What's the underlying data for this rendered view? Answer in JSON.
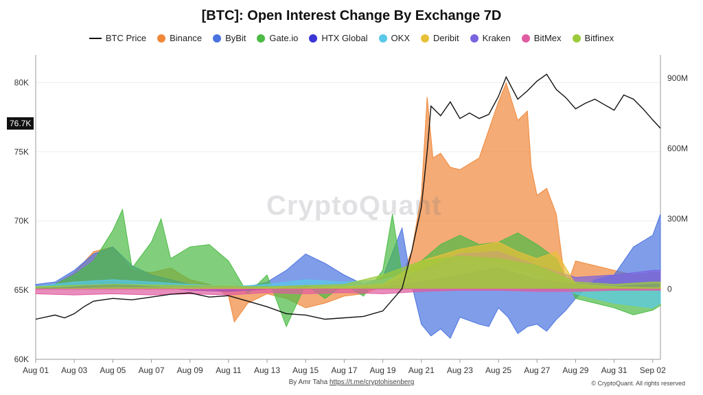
{
  "title": "[BTC]: Open Interest Change By Exchange 7D",
  "watermark": "CryptoQuant",
  "price_badge": "76.7K",
  "footer": {
    "author": "By Amr Taha",
    "link": "https://t.me/cryptohisenberg",
    "rights": "© CryptoQuant. All rights reserved"
  },
  "chart_data": {
    "type": "area",
    "title": "[BTC]: Open Interest Change By Exchange 7D",
    "x_tick_labels": [
      "Aug 01",
      "Aug 03",
      "Aug 05",
      "Aug 07",
      "Aug 09",
      "Aug 11",
      "Aug 13",
      "Aug 15",
      "Aug 17",
      "Aug 19",
      "Aug 21",
      "Aug 23",
      "Aug 25",
      "Aug 27",
      "Aug 29",
      "Aug 31",
      "Sep 02"
    ],
    "x_range_days": [
      1,
      33.4
    ],
    "y_left": {
      "label": "",
      "ticks": [
        "60K",
        "65K",
        "70K",
        "75K",
        "80K"
      ],
      "range": [
        60000,
        82000
      ]
    },
    "y_right": {
      "label": "",
      "ticks": [
        "0",
        "300M",
        "600M",
        "900M"
      ],
      "range": [
        -300000000,
        1000000000
      ]
    },
    "legend_position": "top-center",
    "grid": "horizontal",
    "series": [
      {
        "name": "BTC Price",
        "kind": "line",
        "axis": "left",
        "color": "#111111",
        "points": [
          [
            1,
            62.9
          ],
          [
            2,
            63.2
          ],
          [
            2.5,
            63.0
          ],
          [
            3,
            63.3
          ],
          [
            3.5,
            63.8
          ],
          [
            4,
            64.2
          ],
          [
            5,
            64.4
          ],
          [
            6,
            64.3
          ],
          [
            7,
            64.5
          ],
          [
            8,
            64.7
          ],
          [
            9,
            64.8
          ],
          [
            10,
            64.5
          ],
          [
            11,
            64.6
          ],
          [
            12,
            64.2
          ],
          [
            13,
            63.8
          ],
          [
            14,
            63.3
          ],
          [
            15,
            63.2
          ],
          [
            16,
            62.9
          ],
          [
            17,
            63.0
          ],
          [
            18,
            63.1
          ],
          [
            19,
            63.5
          ],
          [
            19.5,
            64.3
          ],
          [
            20,
            65.1
          ],
          [
            20.5,
            67.8
          ],
          [
            21,
            71.0
          ],
          [
            21.3,
            75.0
          ],
          [
            21.5,
            78.3
          ],
          [
            22,
            77.6
          ],
          [
            22.5,
            78.6
          ],
          [
            23,
            77.4
          ],
          [
            23.5,
            77.8
          ],
          [
            24,
            77.4
          ],
          [
            24.5,
            77.7
          ],
          [
            25,
            79.0
          ],
          [
            25.4,
            80.4
          ],
          [
            26,
            78.8
          ],
          [
            26.5,
            79.4
          ],
          [
            27,
            80.1
          ],
          [
            27.5,
            80.6
          ],
          [
            28,
            79.5
          ],
          [
            28.5,
            78.9
          ],
          [
            29,
            78.1
          ],
          [
            29.5,
            78.5
          ],
          [
            30,
            78.8
          ],
          [
            30.5,
            78.4
          ],
          [
            31,
            78.0
          ],
          [
            31.5,
            79.1
          ],
          [
            32,
            78.8
          ],
          [
            32.5,
            78.1
          ],
          [
            33,
            77.3
          ],
          [
            33.4,
            76.7
          ]
        ]
      },
      {
        "name": "Binance",
        "kind": "area",
        "axis": "right",
        "color": "#f0883a",
        "points": [
          [
            1,
            10
          ],
          [
            2,
            20
          ],
          [
            3,
            70
          ],
          [
            4,
            160
          ],
          [
            5,
            180
          ],
          [
            6,
            80
          ],
          [
            7,
            70
          ],
          [
            8,
            90
          ],
          [
            9,
            40
          ],
          [
            10,
            20
          ],
          [
            11,
            -30
          ],
          [
            11.3,
            -140
          ],
          [
            12,
            -60
          ],
          [
            13,
            -20
          ],
          [
            14,
            -40
          ],
          [
            15,
            -80
          ],
          [
            16,
            -60
          ],
          [
            17,
            -30
          ],
          [
            18,
            -20
          ],
          [
            19,
            10
          ],
          [
            20,
            60
          ],
          [
            20.5,
            160
          ],
          [
            21,
            400
          ],
          [
            21.3,
            820
          ],
          [
            21.6,
            560
          ],
          [
            22,
            580
          ],
          [
            22.5,
            520
          ],
          [
            23,
            510
          ],
          [
            24,
            560
          ],
          [
            25,
            800
          ],
          [
            25.4,
            880
          ],
          [
            26,
            720
          ],
          [
            26.5,
            760
          ],
          [
            26.7,
            520
          ],
          [
            27,
            400
          ],
          [
            27.5,
            430
          ],
          [
            28,
            320
          ],
          [
            28.5,
            0
          ],
          [
            29,
            120
          ],
          [
            30,
            100
          ],
          [
            31,
            80
          ],
          [
            32,
            60
          ],
          [
            33,
            70
          ],
          [
            33.4,
            70
          ]
        ]
      },
      {
        "name": "ByBit",
        "kind": "area",
        "axis": "right",
        "color": "#4a73e0",
        "points": [
          [
            1,
            20
          ],
          [
            2,
            30
          ],
          [
            3,
            80
          ],
          [
            4,
            150
          ],
          [
            5,
            180
          ],
          [
            6,
            100
          ],
          [
            7,
            60
          ],
          [
            8,
            40
          ],
          [
            9,
            20
          ],
          [
            10,
            0
          ],
          [
            11,
            -10
          ],
          [
            12,
            10
          ],
          [
            13,
            30
          ],
          [
            14,
            80
          ],
          [
            15,
            150
          ],
          [
            16,
            110
          ],
          [
            17,
            60
          ],
          [
            18,
            20
          ],
          [
            19,
            50
          ],
          [
            20,
            260
          ],
          [
            20.5,
            20
          ],
          [
            21,
            -150
          ],
          [
            21.5,
            -200
          ],
          [
            22,
            -170
          ],
          [
            22.5,
            -210
          ],
          [
            23,
            -120
          ],
          [
            24,
            -150
          ],
          [
            24.5,
            -160
          ],
          [
            25,
            -80
          ],
          [
            25.5,
            -120
          ],
          [
            26,
            -190
          ],
          [
            26.5,
            -160
          ],
          [
            27,
            -150
          ],
          [
            27.5,
            -180
          ],
          [
            28,
            -130
          ],
          [
            28.5,
            -90
          ],
          [
            29,
            -40
          ],
          [
            30,
            40
          ],
          [
            31,
            60
          ],
          [
            32,
            180
          ],
          [
            33,
            230
          ],
          [
            33.4,
            320
          ]
        ]
      },
      {
        "name": "Gate.io",
        "kind": "area",
        "axis": "right",
        "color": "#4bbb45",
        "points": [
          [
            1,
            10
          ],
          [
            2,
            20
          ],
          [
            3,
            60
          ],
          [
            4,
            120
          ],
          [
            5,
            250
          ],
          [
            5.5,
            340
          ],
          [
            6,
            90
          ],
          [
            7,
            200
          ],
          [
            7.5,
            300
          ],
          [
            8,
            130
          ],
          [
            9,
            180
          ],
          [
            10,
            190
          ],
          [
            11,
            120
          ],
          [
            12,
            -20
          ],
          [
            13,
            60
          ],
          [
            14,
            -160
          ],
          [
            15,
            20
          ],
          [
            16,
            -40
          ],
          [
            17,
            20
          ],
          [
            18,
            -30
          ],
          [
            19,
            80
          ],
          [
            19.5,
            320
          ],
          [
            20,
            60
          ],
          [
            21,
            120
          ],
          [
            22,
            190
          ],
          [
            23,
            230
          ],
          [
            24,
            190
          ],
          [
            25,
            200
          ],
          [
            26,
            240
          ],
          [
            27,
            190
          ],
          [
            28,
            130
          ],
          [
            29,
            -40
          ],
          [
            30,
            -60
          ],
          [
            31,
            -80
          ],
          [
            32,
            -110
          ],
          [
            33,
            -90
          ],
          [
            33.4,
            -70
          ]
        ]
      },
      {
        "name": "HTX Global",
        "kind": "area",
        "axis": "right",
        "color": "#3b35d6",
        "points": [
          [
            1,
            0
          ],
          [
            3,
            10
          ],
          [
            5,
            20
          ],
          [
            7,
            10
          ],
          [
            9,
            -5
          ],
          [
            11,
            -10
          ],
          [
            13,
            0
          ],
          [
            15,
            10
          ],
          [
            17,
            0
          ],
          [
            19,
            5
          ],
          [
            21,
            30
          ],
          [
            23,
            60
          ],
          [
            25,
            90
          ],
          [
            27,
            40
          ],
          [
            29,
            20
          ],
          [
            31,
            10
          ],
          [
            33,
            20
          ],
          [
            33.4,
            20
          ]
        ]
      },
      {
        "name": "OKX",
        "kind": "area",
        "axis": "right",
        "color": "#5ac8e8",
        "points": [
          [
            1,
            10
          ],
          [
            3,
            30
          ],
          [
            5,
            40
          ],
          [
            7,
            30
          ],
          [
            9,
            20
          ],
          [
            11,
            10
          ],
          [
            13,
            20
          ],
          [
            15,
            40
          ],
          [
            17,
            30
          ],
          [
            19,
            40
          ],
          [
            21,
            80
          ],
          [
            23,
            120
          ],
          [
            25,
            110
          ],
          [
            27,
            60
          ],
          [
            29,
            -20
          ],
          [
            31,
            -60
          ],
          [
            33,
            -80
          ],
          [
            33.4,
            -60
          ]
        ]
      },
      {
        "name": "Deribit",
        "kind": "area",
        "axis": "right",
        "color": "#e8c13a",
        "points": [
          [
            1,
            0
          ],
          [
            5,
            5
          ],
          [
            9,
            5
          ],
          [
            13,
            5
          ],
          [
            17,
            10
          ],
          [
            19,
            20
          ],
          [
            21,
            120
          ],
          [
            23,
            170
          ],
          [
            25,
            200
          ],
          [
            26,
            160
          ],
          [
            27,
            130
          ],
          [
            28,
            160
          ],
          [
            29,
            20
          ],
          [
            31,
            10
          ],
          [
            33,
            5
          ],
          [
            33.4,
            5
          ]
        ]
      },
      {
        "name": "Kraken",
        "kind": "area",
        "axis": "right",
        "color": "#7a64e0",
        "points": [
          [
            1,
            5
          ],
          [
            5,
            10
          ],
          [
            9,
            10
          ],
          [
            13,
            10
          ],
          [
            17,
            10
          ],
          [
            19,
            15
          ],
          [
            21,
            80
          ],
          [
            23,
            150
          ],
          [
            25,
            160
          ],
          [
            27,
            100
          ],
          [
            29,
            50
          ],
          [
            31,
            60
          ],
          [
            33,
            80
          ],
          [
            33.4,
            80
          ]
        ]
      },
      {
        "name": "BitMex",
        "kind": "area",
        "axis": "right",
        "color": "#e05ca0",
        "points": [
          [
            1,
            -20
          ],
          [
            3,
            -25
          ],
          [
            5,
            -20
          ],
          [
            7,
            -25
          ],
          [
            9,
            -20
          ],
          [
            11,
            -25
          ],
          [
            13,
            -15
          ],
          [
            15,
            -20
          ],
          [
            17,
            -15
          ],
          [
            19,
            -20
          ],
          [
            21,
            -10
          ],
          [
            23,
            -5
          ],
          [
            25,
            -5
          ],
          [
            27,
            -10
          ],
          [
            29,
            -10
          ],
          [
            31,
            -5
          ],
          [
            33,
            -5
          ],
          [
            33.4,
            -5
          ]
        ]
      },
      {
        "name": "Bitfinex",
        "kind": "area",
        "axis": "right",
        "color": "#9cca3c",
        "points": [
          [
            1,
            10
          ],
          [
            5,
            20
          ],
          [
            9,
            15
          ],
          [
            13,
            10
          ],
          [
            17,
            20
          ],
          [
            19,
            60
          ],
          [
            21,
            120
          ],
          [
            23,
            140
          ],
          [
            25,
            130
          ],
          [
            27,
            100
          ],
          [
            29,
            30
          ],
          [
            31,
            20
          ],
          [
            33,
            30
          ],
          [
            33.4,
            30
          ]
        ]
      }
    ]
  }
}
